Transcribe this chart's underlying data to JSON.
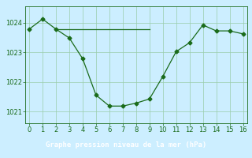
{
  "line1_x": [
    0,
    1,
    2,
    3,
    4,
    5,
    6,
    7,
    8,
    9,
    10,
    11,
    12,
    13,
    14,
    15,
    16
  ],
  "line1_y": [
    1023.78,
    1024.12,
    1023.78,
    1023.48,
    1022.78,
    1021.55,
    1021.18,
    1021.18,
    1021.28,
    1021.42,
    1022.18,
    1023.02,
    1023.32,
    1023.92,
    1023.72,
    1023.72,
    1023.62
  ],
  "line2_x": [
    2,
    9
  ],
  "line2_y": [
    1023.78,
    1023.78
  ],
  "line_color": "#1a6b1a",
  "bg_color": "#cceeff",
  "label_bg_color": "#44aa44",
  "grid_color": "#99ccaa",
  "xlabel": "Graphe pression niveau de la mer (hPa)",
  "xlim": [
    -0.3,
    16.3
  ],
  "ylim": [
    1020.6,
    1024.55
  ],
  "yticks": [
    1021,
    1022,
    1023,
    1024
  ],
  "xticks": [
    0,
    1,
    2,
    3,
    4,
    5,
    6,
    7,
    8,
    9,
    10,
    11,
    12,
    13,
    14,
    15,
    16
  ],
  "marker": "D",
  "markersize": 2.5,
  "linewidth": 0.9,
  "xlabel_fontsize": 6.5,
  "tick_fontsize": 6.0
}
